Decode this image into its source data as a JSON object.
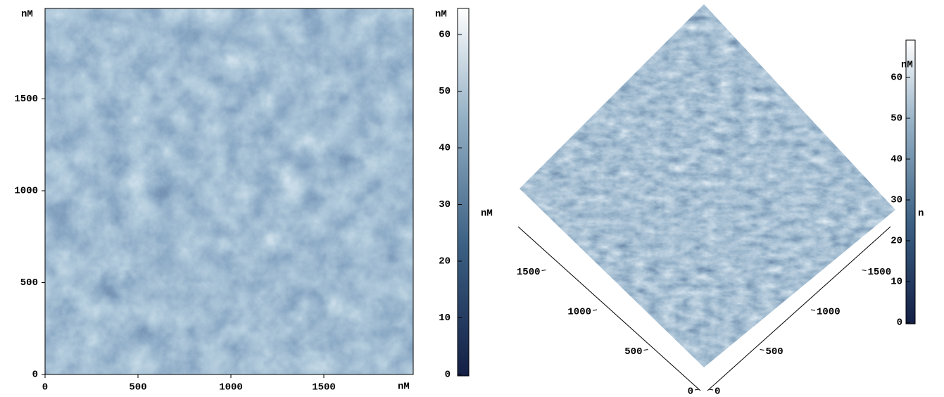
{
  "map2d": {
    "y_unit": "nM",
    "x_unit": "nM",
    "xticks": [
      0,
      500,
      1000,
      1500
    ],
    "yticks": [
      0,
      500,
      1000,
      1500
    ]
  },
  "colorbar": {
    "unit": "nM",
    "side_label": "nM",
    "ticks": [
      0,
      10,
      20,
      30,
      40,
      50,
      60
    ]
  },
  "view3d": {
    "left_ticks": [
      0,
      500,
      1000,
      1500
    ],
    "right_ticks": [
      0,
      500,
      1000,
      1500
    ]
  },
  "colorbar3d": {
    "unit": "nM",
    "side_label": "n",
    "ticks": [
      0,
      10,
      20,
      30,
      40,
      50,
      60
    ]
  }
}
